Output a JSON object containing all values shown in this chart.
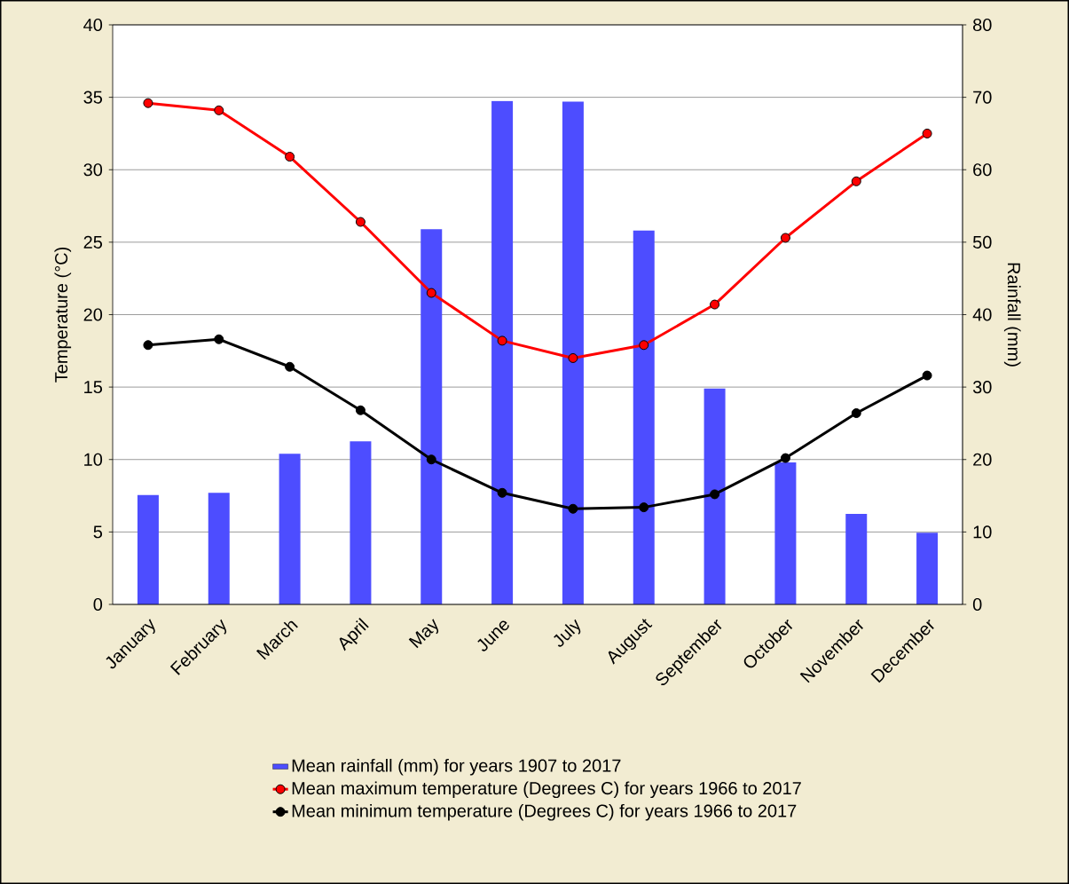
{
  "chart_data": {
    "type": "bar",
    "categories": [
      "January",
      "February",
      "March",
      "April",
      "May",
      "June",
      "July",
      "August",
      "September",
      "October",
      "November",
      "December"
    ],
    "series": [
      {
        "name": "Mean rainfall (mm) for years 1907 to 2017",
        "axis": "y2",
        "color": "#4d4dff",
        "values": [
          15.1,
          15.4,
          20.8,
          22.5,
          51.8,
          69.5,
          69.4,
          51.6,
          29.8,
          19.6,
          12.5,
          9.9
        ]
      },
      {
        "name": "Mean maximum temperature (Degrees C) for years 1966 to 2017",
        "type": "line",
        "axis": "y",
        "color": "#ff0000",
        "values": [
          34.6,
          34.1,
          30.9,
          26.4,
          21.5,
          18.2,
          17.0,
          17.9,
          20.7,
          25.3,
          29.2,
          32.5
        ]
      },
      {
        "name": "Mean minimum temperature (Degrees C) for years 1966 to 2017",
        "type": "line",
        "axis": "y",
        "color": "#000000",
        "values": [
          17.9,
          18.3,
          16.4,
          13.4,
          10.0,
          7.7,
          6.6,
          6.7,
          7.6,
          10.1,
          13.2,
          15.8
        ]
      }
    ],
    "ylabel": "Temperature (°C)",
    "y2label": "Rainfall (mm)",
    "ylim": [
      0,
      40
    ],
    "yticks": [
      0,
      5,
      10,
      15,
      20,
      25,
      30,
      35,
      40
    ],
    "y2lim": [
      0,
      80
    ],
    "y2ticks": [
      0,
      10,
      20,
      30,
      40,
      50,
      60,
      70,
      80
    ],
    "grid": "y",
    "legend": "bottom",
    "marker": "circle"
  }
}
